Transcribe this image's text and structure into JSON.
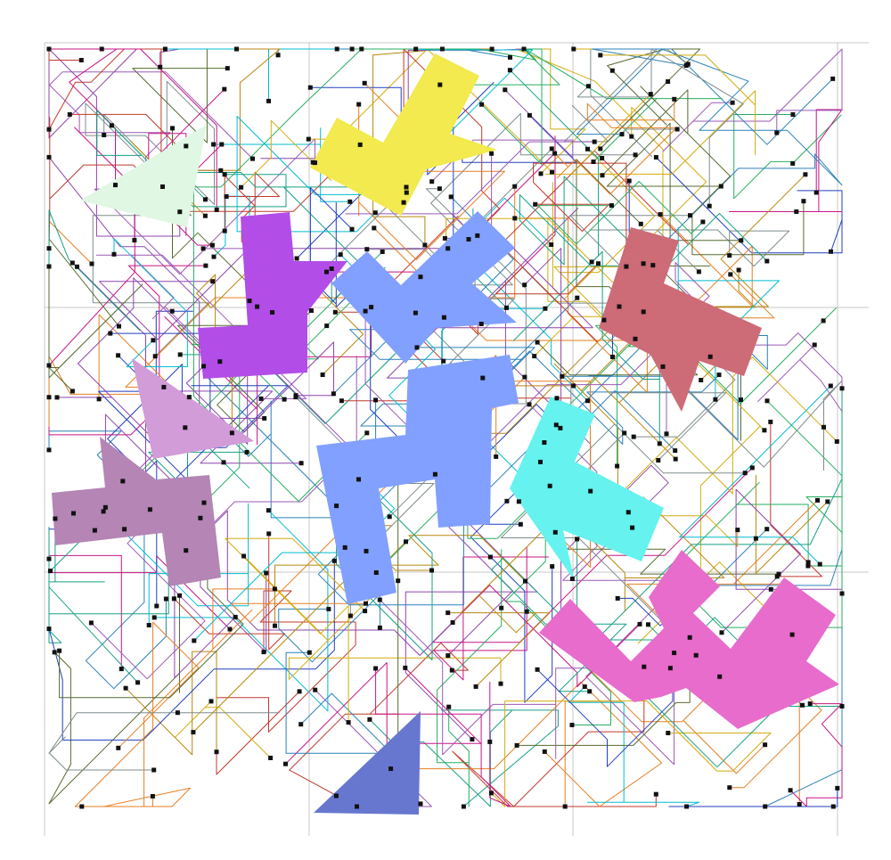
{
  "colors": {
    "background": "#ffffff",
    "grid": "#c8c8c8",
    "pin": "#111111",
    "wire_palette": [
      "#8e44ad",
      "#c0392b",
      "#2980b9",
      "#27ae60",
      "#d4ac0d",
      "#16a085",
      "#e67e22",
      "#7f8c8d",
      "#c71585",
      "#00bcd4",
      "#556b2f",
      "#1f3fbf",
      "#b8860b",
      "#9b59b6"
    ]
  },
  "shapes": [
    {
      "id": "light-green-triangle",
      "color": "#dff7e3"
    },
    {
      "id": "yellow-block",
      "color": "#f2ea4e"
    },
    {
      "id": "purple-block",
      "color": "#b24de8"
    },
    {
      "id": "blue-block-upper",
      "color": "#82a0ff"
    },
    {
      "id": "red-block",
      "color": "#cd6b76"
    },
    {
      "id": "lilac-triangle",
      "color": "#d19cd8"
    },
    {
      "id": "mauve-block",
      "color": "#b485b5"
    },
    {
      "id": "blue-block-large",
      "color": "#82a0ff"
    },
    {
      "id": "cyan-block",
      "color": "#66f2ee"
    },
    {
      "id": "pink-block",
      "color": "#e86ccc"
    },
    {
      "id": "navy-triangle",
      "color": "#6777d0"
    }
  ]
}
